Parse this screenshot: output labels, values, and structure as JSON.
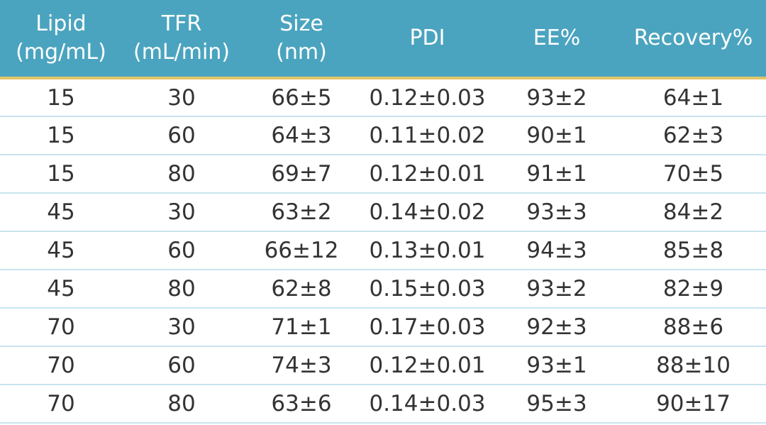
{
  "table": {
    "header": [
      [
        "Lipid",
        "(mg/mL)"
      ],
      [
        "TFR",
        "(mL/min)"
      ],
      [
        "Size",
        "(nm)"
      ],
      [
        "PDI"
      ],
      [
        "EE%"
      ],
      [
        "Recovery%"
      ]
    ],
    "rows": [
      [
        15,
        30,
        "66±5",
        "0.12±0.03",
        "93±2",
        "64±1"
      ],
      [
        15,
        60,
        "64±3",
        "0.11±0.02",
        "90±1",
        "62±3"
      ],
      [
        15,
        80,
        "69±7",
        "0.12±0.01",
        "91±1",
        "70±5"
      ],
      [
        45,
        30,
        "63±2",
        "0.14±0.02",
        "93±3",
        "84±2"
      ],
      [
        45,
        60,
        "66±12",
        "0.13±0.01",
        "94±3",
        "85±8"
      ],
      [
        45,
        80,
        "62±8",
        "0.15±0.03",
        "93±2",
        "82±9"
      ],
      [
        70,
        30,
        "71±1",
        "0.17±0.03",
        "92±3",
        "88±6"
      ],
      [
        70,
        60,
        "74±3",
        "0.12±0.01",
        "93±1",
        "88±10"
      ],
      [
        70,
        80,
        "63±6",
        "0.14±0.03",
        "95±3",
        "90±17"
      ]
    ]
  }
}
